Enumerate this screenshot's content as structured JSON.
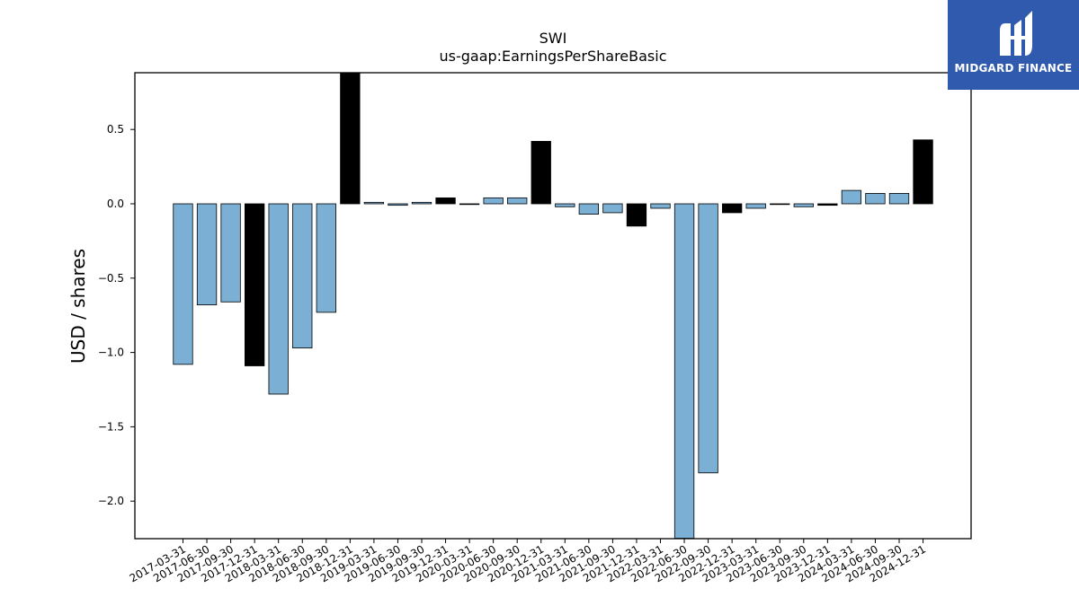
{
  "chart_data": {
    "type": "bar",
    "title": "SWI",
    "subtitle": "us-gaap:EarningsPerShareBasic",
    "xlabel": "",
    "ylabel": "USD / shares",
    "ylim": [
      -2.25,
      0.88
    ],
    "yticks": [
      0.5,
      0.0,
      -0.5,
      -1.0,
      -1.5,
      -2.0
    ],
    "ytick_labels": [
      "0.5",
      "0.0",
      "−0.5",
      "−1.0",
      "−1.5",
      "−2.0"
    ],
    "grid": false,
    "legend": "none",
    "colors": {
      "quarter": "#7bafd4",
      "fiscal_year": "#000000",
      "edge": "#000000"
    },
    "categories": [
      "2017-03-31",
      "2017-06-30",
      "2017-09-30",
      "2017-12-31",
      "2018-03-31",
      "2018-06-30",
      "2018-09-30",
      "2018-12-31",
      "2019-03-31",
      "2019-06-30",
      "2019-09-30",
      "2019-12-31",
      "2020-03-31",
      "2020-06-30",
      "2020-09-30",
      "2020-12-31",
      "2021-03-31",
      "2021-06-30",
      "2021-09-30",
      "2021-12-31",
      "2022-03-31",
      "2022-06-30",
      "2022-09-30",
      "2022-12-31",
      "2023-03-31",
      "2023-06-30",
      "2023-09-30",
      "2023-12-31",
      "2024-03-31",
      "2024-06-30",
      "2024-09-30",
      "2024-12-31"
    ],
    "values": [
      -1.08,
      -0.68,
      -0.66,
      -1.09,
      -1.28,
      -0.97,
      -0.73,
      0.88,
      0.01,
      -0.01,
      0.01,
      0.04,
      0.0,
      0.04,
      0.04,
      0.42,
      -0.02,
      -0.07,
      -0.06,
      -0.15,
      -0.03,
      -2.25,
      -1.81,
      -0.06,
      -0.03,
      0.0,
      -0.02,
      -0.01,
      0.09,
      0.07,
      0.07,
      0.43
    ],
    "annual": [
      false,
      false,
      false,
      true,
      false,
      false,
      false,
      true,
      false,
      false,
      false,
      true,
      false,
      false,
      false,
      true,
      false,
      false,
      false,
      true,
      false,
      false,
      false,
      true,
      false,
      false,
      false,
      true,
      false,
      false,
      false,
      true
    ]
  },
  "logo": {
    "text": "MIDGARD FINANCE"
  }
}
